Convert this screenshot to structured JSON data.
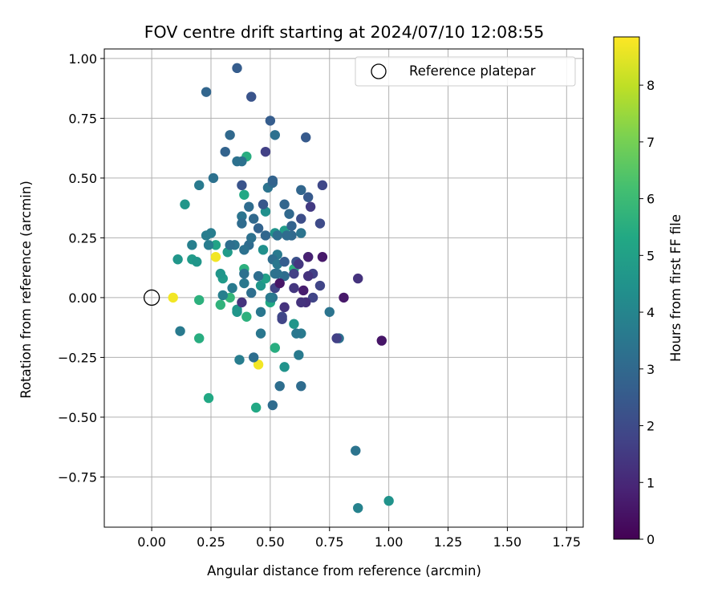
{
  "chart_data": {
    "type": "scatter",
    "title": "FOV centre drift starting at 2024/07/10 12:08:55",
    "xlabel": "Angular distance from reference (arcmin)",
    "ylabel": "Rotation from reference (arcmin)",
    "xlim": [
      -0.2,
      1.82
    ],
    "ylim": [
      -0.96,
      1.04
    ],
    "xticks": [
      "0.00",
      "0.25",
      "0.50",
      "0.75",
      "1.00",
      "1.25",
      "1.50",
      "1.75"
    ],
    "xtick_values": [
      0,
      0.25,
      0.5,
      0.75,
      1.0,
      1.25,
      1.5,
      1.75
    ],
    "yticks": [
      "1.00",
      "0.75",
      "0.50",
      "0.25",
      "0.00",
      "−0.25",
      "−0.50",
      "−0.75"
    ],
    "ytick_values": [
      1.0,
      0.75,
      0.5,
      0.25,
      0,
      -0.25,
      -0.5,
      -0.75
    ],
    "grid": true,
    "legend": {
      "placement": "upper-right",
      "entries": [
        "Reference platepar"
      ]
    },
    "reference_point": {
      "x": 0,
      "y": 0,
      "label": "Reference platepar"
    },
    "colorbar": {
      "label": "Hours from first FF file",
      "colormap": "viridis",
      "range": [
        0,
        8.85
      ],
      "ticks": [
        "0",
        "1",
        "2",
        "3",
        "4",
        "5",
        "6",
        "7",
        "8"
      ],
      "tick_values": [
        0,
        1,
        2,
        3,
        4,
        5,
        6,
        7,
        8
      ]
    },
    "series": [
      {
        "points": [
          {
            "x": 0.09,
            "y": 0.0,
            "c": 8.7
          },
          {
            "x": 0.27,
            "y": 0.17,
            "c": 8.7
          },
          {
            "x": 0.45,
            "y": -0.28,
            "c": 8.7
          },
          {
            "x": 0.24,
            "y": -0.42,
            "c": 5.3
          },
          {
            "x": 0.44,
            "y": -0.46,
            "c": 5.3
          },
          {
            "x": 0.52,
            "y": -0.21,
            "c": 5.5
          },
          {
            "x": 0.2,
            "y": -0.17,
            "c": 5.5
          },
          {
            "x": 0.2,
            "y": -0.01,
            "c": 5.6
          },
          {
            "x": 0.29,
            "y": -0.03,
            "c": 5.7
          },
          {
            "x": 0.33,
            "y": 0.0,
            "c": 5.8
          },
          {
            "x": 0.4,
            "y": 0.59,
            "c": 5.5
          },
          {
            "x": 0.39,
            "y": 0.43,
            "c": 5.3
          },
          {
            "x": 0.14,
            "y": 0.39,
            "c": 4.6
          },
          {
            "x": 0.11,
            "y": 0.16,
            "c": 4.6
          },
          {
            "x": 0.17,
            "y": 0.16,
            "c": 4.8
          },
          {
            "x": 0.19,
            "y": 0.15,
            "c": 4.6
          },
          {
            "x": 0.27,
            "y": 0.22,
            "c": 5.1
          },
          {
            "x": 0.3,
            "y": 0.08,
            "c": 4.8
          },
          {
            "x": 0.29,
            "y": 0.1,
            "c": 4.6
          },
          {
            "x": 0.36,
            "y": -0.05,
            "c": 4.6
          },
          {
            "x": 0.36,
            "y": -0.06,
            "c": 4.6
          },
          {
            "x": 0.4,
            "y": -0.08,
            "c": 5.6
          },
          {
            "x": 0.5,
            "y": -0.02,
            "c": 5.3
          },
          {
            "x": 0.39,
            "y": 0.12,
            "c": 5.6
          },
          {
            "x": 0.32,
            "y": 0.19,
            "c": 4.8
          },
          {
            "x": 0.46,
            "y": 0.05,
            "c": 4.6
          },
          {
            "x": 0.48,
            "y": 0.08,
            "c": 5.0
          },
          {
            "x": 0.6,
            "y": 0.12,
            "c": 5.6
          },
          {
            "x": 0.66,
            "y": 0.17,
            "c": 5.8
          },
          {
            "x": 0.6,
            "y": -0.11,
            "c": 4.6
          },
          {
            "x": 0.56,
            "y": -0.29,
            "c": 4.5
          },
          {
            "x": 0.52,
            "y": 0.27,
            "c": 4.5
          },
          {
            "x": 0.56,
            "y": 0.28,
            "c": 4.8
          },
          {
            "x": 0.47,
            "y": 0.2,
            "c": 4.4
          },
          {
            "x": 0.48,
            "y": 0.36,
            "c": 4.4
          },
          {
            "x": 1.0,
            "y": -0.85,
            "c": 4.5
          },
          {
            "x": 0.87,
            "y": -0.88,
            "c": 3.9
          },
          {
            "x": 0.86,
            "y": -0.64,
            "c": 3.4
          },
          {
            "x": 0.12,
            "y": -0.14,
            "c": 3.6
          },
          {
            "x": 0.37,
            "y": -0.26,
            "c": 3.7
          },
          {
            "x": 0.43,
            "y": -0.25,
            "c": 3.2
          },
          {
            "x": 0.46,
            "y": -0.15,
            "c": 3.5
          },
          {
            "x": 0.46,
            "y": -0.06,
            "c": 3.5
          },
          {
            "x": 0.51,
            "y": -0.45,
            "c": 3.1
          },
          {
            "x": 0.54,
            "y": -0.37,
            "c": 3.2
          },
          {
            "x": 0.63,
            "y": -0.37,
            "c": 3.1
          },
          {
            "x": 0.62,
            "y": -0.24,
            "c": 3.6
          },
          {
            "x": 0.63,
            "y": -0.15,
            "c": 3.6
          },
          {
            "x": 0.61,
            "y": -0.15,
            "c": 3.5
          },
          {
            "x": 0.75,
            "y": -0.06,
            "c": 3.4
          },
          {
            "x": 0.79,
            "y": -0.17,
            "c": 3.3
          },
          {
            "x": 0.3,
            "y": 0.01,
            "c": 3.8
          },
          {
            "x": 0.34,
            "y": 0.04,
            "c": 3.6
          },
          {
            "x": 0.39,
            "y": 0.06,
            "c": 3.5
          },
          {
            "x": 0.39,
            "y": 0.1,
            "c": 3.3
          },
          {
            "x": 0.41,
            "y": 0.22,
            "c": 3.1
          },
          {
            "x": 0.35,
            "y": 0.22,
            "c": 3.4
          },
          {
            "x": 0.39,
            "y": 0.2,
            "c": 3.3
          },
          {
            "x": 0.42,
            "y": 0.25,
            "c": 3.3
          },
          {
            "x": 0.48,
            "y": 0.26,
            "c": 2.9
          },
          {
            "x": 0.41,
            "y": 0.38,
            "c": 3.1
          },
          {
            "x": 0.43,
            "y": 0.33,
            "c": 3.0
          },
          {
            "x": 0.38,
            "y": 0.34,
            "c": 3.4
          },
          {
            "x": 0.38,
            "y": 0.31,
            "c": 3.1
          },
          {
            "x": 0.45,
            "y": 0.29,
            "c": 2.8
          },
          {
            "x": 0.49,
            "y": 0.46,
            "c": 3.4
          },
          {
            "x": 0.51,
            "y": 0.48,
            "c": 3.0
          },
          {
            "x": 0.51,
            "y": 0.49,
            "c": 2.8
          },
          {
            "x": 0.52,
            "y": 0.68,
            "c": 3.3
          },
          {
            "x": 0.38,
            "y": 0.57,
            "c": 3.3
          },
          {
            "x": 0.36,
            "y": 0.57,
            "c": 3.3
          },
          {
            "x": 0.31,
            "y": 0.61,
            "c": 2.8
          },
          {
            "x": 0.33,
            "y": 0.68,
            "c": 3.0
          },
          {
            "x": 0.26,
            "y": 0.5,
            "c": 3.3
          },
          {
            "x": 0.2,
            "y": 0.47,
            "c": 3.6
          },
          {
            "x": 0.23,
            "y": 0.26,
            "c": 3.7
          },
          {
            "x": 0.25,
            "y": 0.27,
            "c": 3.7
          },
          {
            "x": 0.24,
            "y": 0.22,
            "c": 3.7
          },
          {
            "x": 0.17,
            "y": 0.22,
            "c": 3.8
          },
          {
            "x": 0.23,
            "y": 0.86,
            "c": 2.9
          },
          {
            "x": 0.36,
            "y": 0.96,
            "c": 2.6
          },
          {
            "x": 0.42,
            "y": 0.84,
            "c": 2.3
          },
          {
            "x": 0.5,
            "y": 0.74,
            "c": 2.6
          },
          {
            "x": 0.65,
            "y": 0.67,
            "c": 2.5
          },
          {
            "x": 0.48,
            "y": 0.61,
            "c": 1.7
          },
          {
            "x": 0.38,
            "y": 0.47,
            "c": 2.3
          },
          {
            "x": 0.47,
            "y": 0.39,
            "c": 2.4
          },
          {
            "x": 0.56,
            "y": 0.39,
            "c": 2.9
          },
          {
            "x": 0.58,
            "y": 0.35,
            "c": 3.0
          },
          {
            "x": 0.63,
            "y": 0.45,
            "c": 2.9
          },
          {
            "x": 0.66,
            "y": 0.42,
            "c": 2.5
          },
          {
            "x": 0.67,
            "y": 0.38,
            "c": 1.5
          },
          {
            "x": 0.72,
            "y": 0.47,
            "c": 1.9
          },
          {
            "x": 0.71,
            "y": 0.31,
            "c": 2.0
          },
          {
            "x": 0.63,
            "y": 0.33,
            "c": 2.1
          },
          {
            "x": 0.59,
            "y": 0.3,
            "c": 2.8
          },
          {
            "x": 0.59,
            "y": 0.26,
            "c": 3.0
          },
          {
            "x": 0.63,
            "y": 0.27,
            "c": 3.4
          },
          {
            "x": 0.53,
            "y": 0.26,
            "c": 3.2
          },
          {
            "x": 0.57,
            "y": 0.26,
            "c": 3.1
          },
          {
            "x": 0.53,
            "y": 0.18,
            "c": 3.6
          },
          {
            "x": 0.51,
            "y": 0.16,
            "c": 3.2
          },
          {
            "x": 0.53,
            "y": 0.14,
            "c": 3.5
          },
          {
            "x": 0.52,
            "y": 0.1,
            "c": 3.4
          },
          {
            "x": 0.56,
            "y": 0.09,
            "c": 3.1
          },
          {
            "x": 0.56,
            "y": 0.15,
            "c": 2.6
          },
          {
            "x": 0.61,
            "y": 0.15,
            "c": 2.2
          },
          {
            "x": 0.6,
            "y": 0.1,
            "c": 1.7
          },
          {
            "x": 0.62,
            "y": 0.14,
            "c": 1.4
          },
          {
            "x": 0.66,
            "y": 0.17,
            "c": 0.8
          },
          {
            "x": 0.68,
            "y": 0.1,
            "c": 1.7
          },
          {
            "x": 0.66,
            "y": 0.09,
            "c": 1.3
          },
          {
            "x": 0.72,
            "y": 0.17,
            "c": 0.6
          },
          {
            "x": 0.71,
            "y": 0.05,
            "c": 1.8
          },
          {
            "x": 0.68,
            "y": 0.0,
            "c": 1.8
          },
          {
            "x": 0.64,
            "y": 0.03,
            "c": 0.7
          },
          {
            "x": 0.6,
            "y": 0.04,
            "c": 1.4
          },
          {
            "x": 0.52,
            "y": 0.04,
            "c": 1.8
          },
          {
            "x": 0.54,
            "y": 0.06,
            "c": 0.5
          },
          {
            "x": 0.65,
            "y": -0.02,
            "c": 1.2
          },
          {
            "x": 0.63,
            "y": -0.02,
            "c": 1.3
          },
          {
            "x": 0.56,
            "y": -0.04,
            "c": 1.3
          },
          {
            "x": 0.55,
            "y": -0.08,
            "c": 1.9
          },
          {
            "x": 0.55,
            "y": -0.09,
            "c": 1.8
          },
          {
            "x": 0.81,
            "y": 0.0,
            "c": 0.6
          },
          {
            "x": 0.87,
            "y": 0.08,
            "c": 1.3
          },
          {
            "x": 0.78,
            "y": -0.17,
            "c": 1.7
          },
          {
            "x": 0.97,
            "y": -0.18,
            "c": 0.5
          },
          {
            "x": 0.38,
            "y": -0.02,
            "c": 1.3
          },
          {
            "x": 0.45,
            "y": 0.09,
            "c": 3.2
          },
          {
            "x": 0.51,
            "y": 0.0,
            "c": 3.4
          },
          {
            "x": 0.42,
            "y": 0.02,
            "c": 3.2
          },
          {
            "x": 0.5,
            "y": 0.0,
            "c": 3.6
          },
          {
            "x": 0.33,
            "y": 0.22,
            "c": 3.2
          },
          {
            "x": 0.53,
            "y": 0.1,
            "c": 3.3
          }
        ]
      }
    ]
  }
}
